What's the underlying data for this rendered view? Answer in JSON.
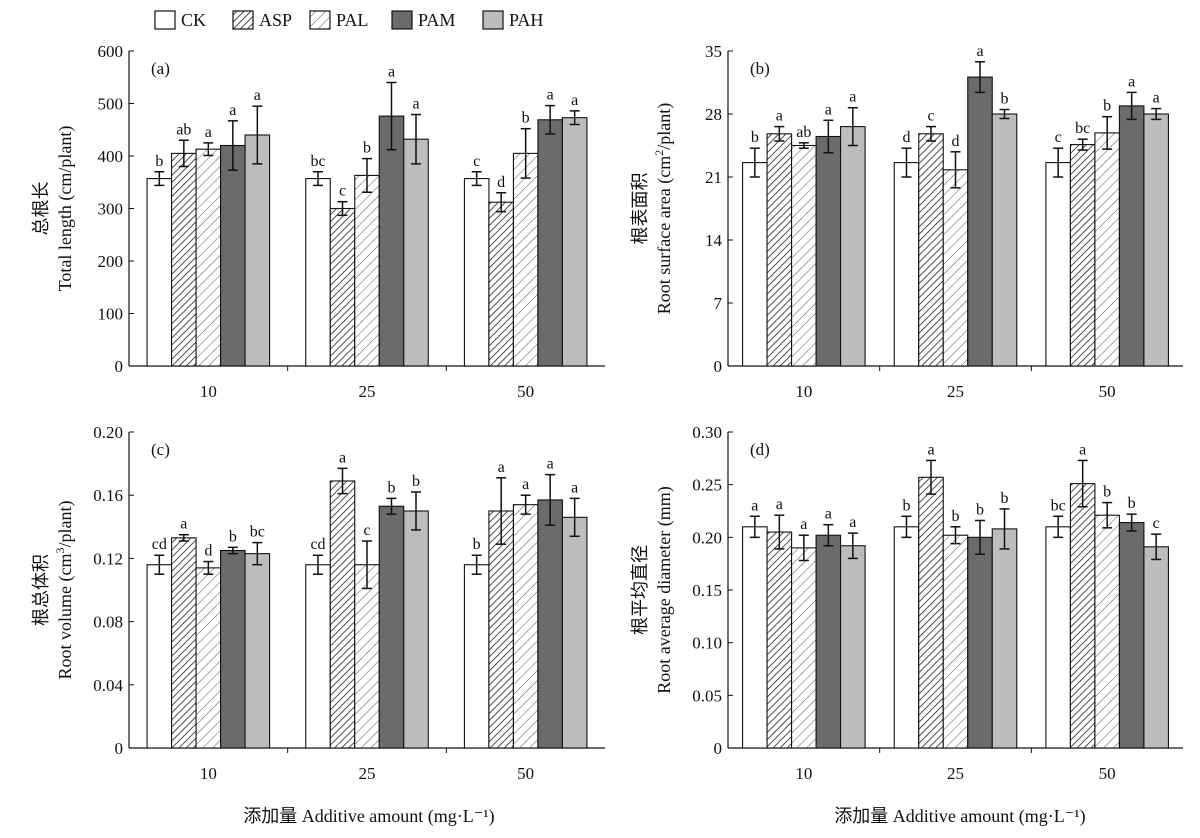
{
  "legend": [
    {
      "key": "CK",
      "label": "CK",
      "fill": "white"
    },
    {
      "key": "ASP",
      "label": "ASP",
      "fill": "hatch-dense"
    },
    {
      "key": "PAL",
      "label": "PAL",
      "fill": "hatch-light"
    },
    {
      "key": "PAM",
      "label": "PAM",
      "fill": "#6b6b6b"
    },
    {
      "key": "PAH",
      "label": "PAH",
      "fill": "#bdbdbd"
    }
  ],
  "xlabel_left": "添加量 Additive amount (mg·L⁻¹)",
  "xlabel_right": "添加量 Additive amount (mg·L⁻¹)",
  "chart_data": [
    {
      "type": "bar",
      "panel": "(a)",
      "ylabel_cn": "总根长",
      "ylabel_en": "Total length (cm/plant)",
      "categories": [
        "10",
        "25",
        "50"
      ],
      "ylim": [
        0,
        600
      ],
      "yticks": [
        "0",
        "100",
        "200",
        "300",
        "400",
        "500",
        "600"
      ],
      "series": [
        {
          "name": "CK",
          "values": [
            357,
            357,
            357
          ],
          "errors": [
            13,
            13,
            13
          ],
          "letters": [
            "b",
            "bc",
            "c"
          ]
        },
        {
          "name": "ASP",
          "values": [
            405,
            300,
            312
          ],
          "errors": [
            25,
            13,
            18
          ],
          "letters": [
            "ab",
            "c",
            "d"
          ]
        },
        {
          "name": "PAL",
          "values": [
            413,
            363,
            405
          ],
          "errors": [
            12,
            32,
            47
          ],
          "letters": [
            "a",
            "b",
            "b"
          ]
        },
        {
          "name": "PAM",
          "values": [
            420,
            476,
            469
          ],
          "errors": [
            47,
            64,
            27
          ],
          "letters": [
            "a",
            "a",
            "a"
          ]
        },
        {
          "name": "PAH",
          "values": [
            440,
            432,
            473
          ],
          "errors": [
            55,
            47,
            13
          ],
          "letters": [
            "a",
            "a",
            "a"
          ]
        }
      ]
    },
    {
      "type": "bar",
      "panel": "(b)",
      "ylabel_cn": "根表面积",
      "ylabel_en_pre": "Root surface area (cm",
      "ylabel_en_sup": "2",
      "ylabel_en_post": "/plant)",
      "categories": [
        "10",
        "25",
        "50"
      ],
      "ylim": [
        0,
        35
      ],
      "yticks": [
        "0",
        "7",
        "14",
        "21",
        "28",
        "35"
      ],
      "series": [
        {
          "name": "CK",
          "values": [
            22.6,
            22.6,
            22.6
          ],
          "errors": [
            1.6,
            1.6,
            1.6
          ],
          "letters": [
            "b",
            "d",
            "c"
          ]
        },
        {
          "name": "ASP",
          "values": [
            25.8,
            25.8,
            24.6
          ],
          "errors": [
            0.8,
            0.8,
            0.6
          ],
          "letters": [
            "a",
            "c",
            "bc"
          ]
        },
        {
          "name": "PAL",
          "values": [
            24.5,
            21.8,
            25.9
          ],
          "errors": [
            0.3,
            2.0,
            1.8
          ],
          "letters": [
            "ab",
            "d",
            "b"
          ]
        },
        {
          "name": "PAM",
          "values": [
            25.5,
            32.1,
            28.9
          ],
          "errors": [
            1.8,
            1.7,
            1.5
          ],
          "letters": [
            "a",
            "a",
            "a"
          ]
        },
        {
          "name": "PAH",
          "values": [
            26.6,
            28.0,
            28.0
          ],
          "errors": [
            2.1,
            0.5,
            0.6
          ],
          "letters": [
            "a",
            "b",
            "a"
          ]
        }
      ]
    },
    {
      "type": "bar",
      "panel": "(c)",
      "ylabel_cn": "根总体积",
      "ylabel_en_pre": "Root volume (cm",
      "ylabel_en_sup": "3",
      "ylabel_en_post": "/plant)",
      "categories": [
        "10",
        "25",
        "50"
      ],
      "ylim": [
        0,
        0.2
      ],
      "yticks": [
        "0",
        "0.04",
        "0.08",
        "0.12",
        "0.16",
        "0.20"
      ],
      "series": [
        {
          "name": "CK",
          "values": [
            0.116,
            0.116,
            0.116
          ],
          "errors": [
            0.006,
            0.006,
            0.006
          ],
          "letters": [
            "cd",
            "cd",
            "b"
          ]
        },
        {
          "name": "ASP",
          "values": [
            0.133,
            0.169,
            0.15
          ],
          "errors": [
            0.002,
            0.008,
            0.021
          ],
          "letters": [
            "a",
            "a",
            "a"
          ]
        },
        {
          "name": "PAL",
          "values": [
            0.114,
            0.116,
            0.154
          ],
          "errors": [
            0.004,
            0.015,
            0.006
          ],
          "letters": [
            "d",
            "c",
            "a"
          ]
        },
        {
          "name": "PAM",
          "values": [
            0.125,
            0.153,
            0.157
          ],
          "errors": [
            0.002,
            0.005,
            0.016
          ],
          "letters": [
            "b",
            "b",
            "a"
          ]
        },
        {
          "name": "PAH",
          "values": [
            0.123,
            0.15,
            0.146
          ],
          "errors": [
            0.007,
            0.012,
            0.012
          ],
          "letters": [
            "bc",
            "b",
            "a"
          ]
        }
      ]
    },
    {
      "type": "bar",
      "panel": "(d)",
      "ylabel_cn": "根平均直径",
      "ylabel_en": "Root average diameter (mm)",
      "categories": [
        "10",
        "25",
        "50"
      ],
      "ylim": [
        0,
        0.3
      ],
      "yticks": [
        "0",
        "0.05",
        "0.10",
        "0.15",
        "0.20",
        "0.25",
        "0.30"
      ],
      "series": [
        {
          "name": "CK",
          "values": [
            0.21,
            0.21,
            0.21
          ],
          "errors": [
            0.01,
            0.01,
            0.01
          ],
          "letters": [
            "a",
            "b",
            "bc"
          ]
        },
        {
          "name": "ASP",
          "values": [
            0.205,
            0.257,
            0.251
          ],
          "errors": [
            0.016,
            0.016,
            0.022
          ],
          "letters": [
            "a",
            "a",
            "a"
          ]
        },
        {
          "name": "PAL",
          "values": [
            0.19,
            0.202,
            0.221
          ],
          "errors": [
            0.012,
            0.008,
            0.012
          ],
          "letters": [
            "a",
            "b",
            "b"
          ]
        },
        {
          "name": "PAM",
          "values": [
            0.202,
            0.2,
            0.214
          ],
          "errors": [
            0.01,
            0.016,
            0.008
          ],
          "letters": [
            "a",
            "b",
            "b"
          ]
        },
        {
          "name": "PAH",
          "values": [
            0.192,
            0.208,
            0.191
          ],
          "errors": [
            0.012,
            0.019,
            0.012
          ],
          "letters": [
            "a",
            "b",
            "c"
          ]
        }
      ]
    }
  ]
}
